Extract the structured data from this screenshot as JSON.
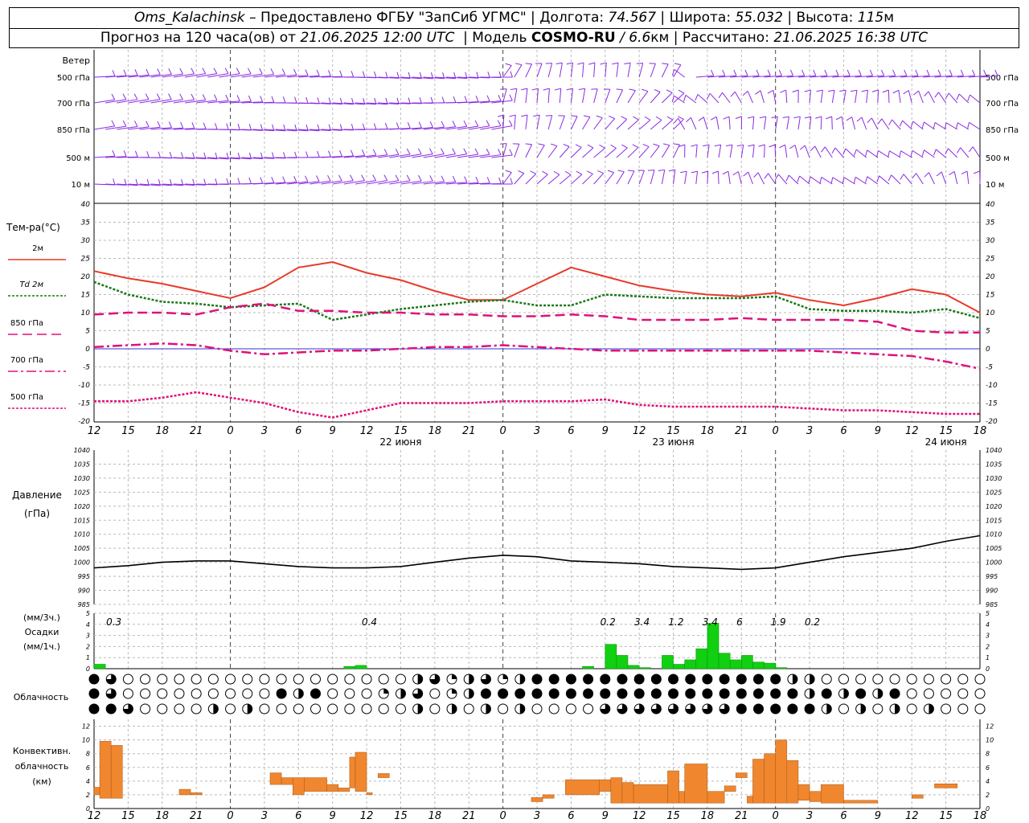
{
  "header": {
    "station": "Oms_Kalachinsk",
    "dash": "–",
    "provider": "Предоставлено ФГБУ \"ЗапСиб УГМС\"",
    "lon_label": "Долгота:",
    "lon": "74.567",
    "lat_label": "Широта:",
    "lat": "55.032",
    "alt_label": "Высота:",
    "alt": "115",
    "alt_unit": "м",
    "forecast_prefix": "Прогноз на 120 часа(ов) от",
    "issued": "21.06.2025 12:00 UTC",
    "model_label": "Модель",
    "model": "COSMO-RU",
    "resolution": "/ 6.6",
    "res_unit": "км",
    "computed_label": "Рассчитано:",
    "computed": "21.06.2025 16:38 UTC"
  },
  "wind": {
    "title": "Ветер",
    "levels": [
      "500 гПа",
      "700 гПа",
      "850 гПа",
      "500 м",
      "10 м"
    ],
    "color": "#8a2be2"
  },
  "temp_panel": {
    "title": "Тем-ра(°C)",
    "yticks": [
      40,
      35,
      30,
      25,
      20,
      15,
      10,
      5,
      0,
      -5,
      -10,
      -15,
      -20
    ],
    "legend": [
      {
        "label": "2м",
        "color": "#e83a2a",
        "style": "solid"
      },
      {
        "label": "Td 2м",
        "color": "#1a7a1a",
        "style": "dotted"
      },
      {
        "label": "850 гПа",
        "color": "#e0107a",
        "style": "dashed"
      },
      {
        "label": "700 гПа",
        "color": "#e0107a",
        "style": "dashdot"
      },
      {
        "label": "500 гПа",
        "color": "#e0107a",
        "style": "dotted"
      }
    ],
    "xticks": [
      "12",
      "15",
      "18",
      "21",
      "0",
      "3",
      "6",
      "9",
      "12",
      "15",
      "18",
      "21",
      "0",
      "3",
      "6",
      "9",
      "12",
      "15",
      "18",
      "21",
      "0",
      "3",
      "6",
      "9",
      "12",
      "15",
      "18"
    ],
    "dates": [
      "22 июня",
      "23 июня",
      "24 июня"
    ]
  },
  "pressure_panel": {
    "title": "Давление",
    "unit": "(гПа)",
    "yticks": [
      1040,
      1035,
      1030,
      1025,
      1020,
      1015,
      1010,
      1005,
      1000,
      995,
      990,
      985
    ]
  },
  "precip_panel": {
    "unit3": "(мм/3ч.)",
    "title": "Осадки",
    "unit1": "(мм/1ч.)",
    "yticks": [
      5,
      4,
      3,
      2,
      1,
      0
    ],
    "totals": [
      {
        "t": 0.5,
        "text": "0.3"
      },
      {
        "t": 23,
        "text": "0.4"
      },
      {
        "t": 44,
        "text": "0.2"
      },
      {
        "t": 47,
        "text": "3.4"
      },
      {
        "t": 50,
        "text": "1.2"
      },
      {
        "t": 53,
        "text": "3.4"
      },
      {
        "t": 56,
        "text": "6"
      },
      {
        "t": 59,
        "text": "1.9"
      },
      {
        "t": 62,
        "text": "0.2"
      }
    ]
  },
  "cloud_panel": {
    "title": "Облачность"
  },
  "conv_panel": {
    "title1": "Конвективн.",
    "title2": "облачность",
    "unit": "(км)",
    "yticks": [
      12,
      10,
      8,
      6,
      4,
      2,
      0
    ],
    "xticks": [
      "12",
      "15",
      "18",
      "21",
      "0",
      "3",
      "6",
      "9",
      "12",
      "15",
      "18",
      "21",
      "0",
      "3",
      "6",
      "9",
      "12",
      "15",
      "18",
      "21",
      "0",
      "3",
      "6",
      "9",
      "12",
      "15",
      "18"
    ]
  },
  "chart_data": {
    "type": "line",
    "x_hours_from_21_06_12utc": [
      0,
      3,
      6,
      9,
      12,
      15,
      18,
      21,
      24,
      27,
      30,
      33,
      36,
      39,
      42,
      45,
      48,
      51,
      54,
      57,
      60,
      63,
      66,
      69,
      72,
      75,
      78
    ],
    "series": [
      {
        "name": "2м",
        "values": [
          21.5,
          19.5,
          18,
          16,
          14,
          17,
          22.5,
          24,
          21,
          19,
          16,
          13.5,
          13.5,
          18,
          22.5,
          20,
          17.5,
          16,
          15,
          14.5,
          15.5,
          13.5,
          12,
          14,
          16.5,
          15,
          10
        ]
      },
      {
        "name": "Td 2м",
        "values": [
          18.5,
          15,
          13,
          12.5,
          11.5,
          12,
          12.5,
          8,
          9.5,
          11,
          12,
          13,
          13.5,
          12,
          12,
          15,
          14.5,
          14,
          14,
          14,
          14.5,
          11,
          10.5,
          10.5,
          10,
          11,
          8.5
        ]
      },
      {
        "name": "850 гПа",
        "values": [
          9.5,
          10,
          10,
          9.5,
          11.5,
          12.5,
          10.5,
          10.5,
          10,
          10,
          9.5,
          9.5,
          9,
          9,
          9.5,
          9,
          8,
          8,
          8,
          8.5,
          8,
          8,
          8,
          7.5,
          5,
          4.5,
          4.5
        ]
      },
      {
        "name": "700 гПа",
        "values": [
          0.5,
          1,
          1.5,
          1,
          -0.5,
          -1.5,
          -1,
          -0.5,
          -0.5,
          0,
          0.5,
          0.5,
          1,
          0.5,
          0,
          -0.5,
          -0.5,
          -0.5,
          -0.5,
          -0.5,
          -0.5,
          -0.5,
          -1,
          -1.5,
          -2,
          -3.5,
          -5.5
        ]
      },
      {
        "name": "500 гПа",
        "values": [
          -14.5,
          -14.5,
          -13.5,
          -12,
          -13.5,
          -15,
          -17.5,
          -19,
          -17,
          -15,
          -15,
          -15,
          -14.5,
          -14.5,
          -14.5,
          -14,
          -15.5,
          -16,
          -16,
          -16,
          -16,
          -16.5,
          -17,
          -17,
          -17.5,
          -18,
          -18
        ]
      }
    ],
    "pressure": {
      "x": [
        0,
        3,
        6,
        9,
        12,
        15,
        18,
        21,
        24,
        27,
        30,
        33,
        36,
        39,
        42,
        45,
        48,
        51,
        54,
        57,
        60,
        63,
        66,
        69,
        72,
        75,
        78
      ],
      "values": [
        998,
        998.8,
        1000,
        1000.5,
        1000.5,
        999.5,
        998.5,
        998,
        998,
        998.5,
        1000,
        1001.5,
        1002.5,
        1002,
        1000.5,
        1000,
        999.5,
        998.5,
        998,
        997.5,
        998,
        1000,
        1002,
        1003.5,
        1005,
        1007.5,
        1009.5
      ]
    },
    "precipitation_hourly_mm": [
      {
        "t": 0.5,
        "v": 0.4
      },
      {
        "t": 22.5,
        "v": 0.2
      },
      {
        "t": 23.5,
        "v": 0.3
      },
      {
        "t": 43.5,
        "v": 0.2
      },
      {
        "t": 45.5,
        "v": 2.2
      },
      {
        "t": 46.5,
        "v": 1.2
      },
      {
        "t": 47.5,
        "v": 0.3
      },
      {
        "t": 48.5,
        "v": 0.1
      },
      {
        "t": 50.5,
        "v": 1.2
      },
      {
        "t": 51.5,
        "v": 0.4
      },
      {
        "t": 52.5,
        "v": 0.8
      },
      {
        "t": 53.5,
        "v": 1.8
      },
      {
        "t": 54.5,
        "v": 4.1
      },
      {
        "t": 55.5,
        "v": 1.4
      },
      {
        "t": 56.5,
        "v": 0.8
      },
      {
        "t": 57.5,
        "v": 1.2
      },
      {
        "t": 58.5,
        "v": 0.6
      },
      {
        "t": 59.5,
        "v": 0.5
      },
      {
        "t": 60.5,
        "v": 0.1
      }
    ],
    "convective_cloud_km": [
      {
        "t0": 0,
        "t1": 0.5,
        "b": 2,
        "top": 3.1
      },
      {
        "t0": 0.5,
        "t1": 1.5,
        "b": 1.5,
        "top": 9.8
      },
      {
        "t0": 1.5,
        "t1": 2.5,
        "b": 1.5,
        "top": 9.2
      },
      {
        "t0": 7.5,
        "t1": 8.5,
        "b": 2,
        "top": 2.8
      },
      {
        "t0": 8.5,
        "t1": 9.5,
        "b": 2,
        "top": 2.3
      },
      {
        "t0": 15.5,
        "t1": 16.5,
        "b": 3.5,
        "top": 5.2
      },
      {
        "t0": 16.5,
        "t1": 17.5,
        "b": 3.5,
        "top": 4.5
      },
      {
        "t0": 17.5,
        "t1": 18.5,
        "b": 2,
        "top": 4.5
      },
      {
        "t0": 18.5,
        "t1": 20.5,
        "b": 2.5,
        "top": 4.5
      },
      {
        "t0": 20.5,
        "t1": 21.5,
        "b": 2.5,
        "top": 3.5
      },
      {
        "t0": 21.5,
        "t1": 22.5,
        "b": 2.5,
        "top": 3
      },
      {
        "t0": 22.5,
        "t1": 23,
        "b": 3,
        "top": 7.5
      },
      {
        "t0": 23,
        "t1": 24,
        "b": 2.5,
        "top": 8.2
      },
      {
        "t0": 24,
        "t1": 24.5,
        "b": 2,
        "top": 2.3
      },
      {
        "t0": 25,
        "t1": 26,
        "b": 4.5,
        "top": 5.1
      },
      {
        "t0": 38.5,
        "t1": 39.5,
        "b": 1,
        "top": 1.6
      },
      {
        "t0": 39.5,
        "t1": 40.5,
        "b": 1.5,
        "top": 2
      },
      {
        "t0": 41.5,
        "t1": 44.5,
        "b": 2,
        "top": 4.2
      },
      {
        "t0": 44.5,
        "t1": 45.5,
        "b": 2.5,
        "top": 4.2
      },
      {
        "t0": 45.5,
        "t1": 46.5,
        "b": 0.8,
        "top": 4.5
      },
      {
        "t0": 46.5,
        "t1": 47.5,
        "b": 0.8,
        "top": 3.8
      },
      {
        "t0": 47.5,
        "t1": 50.5,
        "b": 0.8,
        "top": 3.5
      },
      {
        "t0": 50.5,
        "t1": 51.5,
        "b": 0.8,
        "top": 5.5
      },
      {
        "t0": 51.5,
        "t1": 52,
        "b": 0.8,
        "top": 2.5
      },
      {
        "t0": 52,
        "t1": 54,
        "b": 0.8,
        "top": 6.5
      },
      {
        "t0": 54,
        "t1": 55.5,
        "b": 0.8,
        "top": 2.5
      },
      {
        "t0": 55.5,
        "t1": 56.5,
        "b": 2.5,
        "top": 3.3
      },
      {
        "t0": 56.5,
        "t1": 57.5,
        "b": 4.5,
        "top": 5.2
      },
      {
        "t0": 57.5,
        "t1": 58,
        "b": 0.8,
        "top": 1.8
      },
      {
        "t0": 58,
        "t1": 59,
        "b": 0.8,
        "top": 7.2
      },
      {
        "t0": 59,
        "t1": 60,
        "b": 0.8,
        "top": 8
      },
      {
        "t0": 60,
        "t1": 61,
        "b": 0.8,
        "top": 10
      },
      {
        "t0": 61,
        "t1": 62,
        "b": 0.8,
        "top": 7
      },
      {
        "t0": 62,
        "t1": 63,
        "b": 1.2,
        "top": 3.5
      },
      {
        "t0": 63,
        "t1": 64,
        "b": 1,
        "top": 2.5
      },
      {
        "t0": 64,
        "t1": 66,
        "b": 0.8,
        "top": 3.5
      },
      {
        "t0": 66,
        "t1": 69,
        "b": 0.8,
        "top": 1.2
      },
      {
        "t0": 72,
        "t1": 73,
        "b": 1.5,
        "top": 2
      },
      {
        "t0": 74,
        "t1": 76,
        "b": 3,
        "top": 3.6
      }
    ],
    "xlim_hours": [
      0,
      78
    ],
    "temp_ylim": [
      -20,
      40
    ],
    "pressure_ylim": [
      985,
      1040
    ],
    "precip_ylim": [
      0,
      5
    ],
    "conv_ylim": [
      0,
      13
    ],
    "grid": true
  }
}
